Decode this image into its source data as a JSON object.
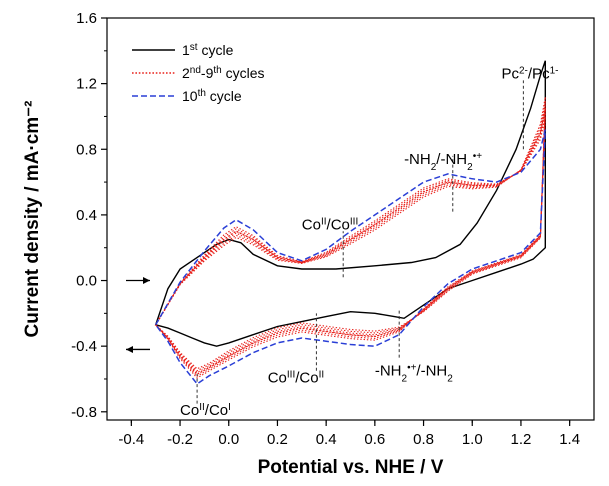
{
  "chart_data": {
    "type": "line",
    "xlabel": "Potential vs. NHE / V",
    "ylabel": "Current density / mA·cm⁻²",
    "xlim": [
      -0.5,
      1.5
    ],
    "ylim": [
      -0.85,
      1.6
    ],
    "xticks": [
      -0.4,
      -0.2,
      0.0,
      0.2,
      0.4,
      0.6,
      0.8,
      1.0,
      1.2,
      1.4
    ],
    "xtick_labels": [
      "-0.4",
      "-0.2",
      "0.0",
      "0.2",
      "0.4",
      "0.6",
      "0.8",
      "1.0",
      "1.2",
      "1.4"
    ],
    "yticks": [
      -0.8,
      -0.4,
      0.0,
      0.4,
      0.8,
      1.2,
      1.6
    ],
    "ytick_labels": [
      "-0.8",
      "-0.4",
      "0.0",
      "0.4",
      "0.8",
      "1.2",
      "1.6"
    ],
    "legend": {
      "position": "top-left",
      "entries": [
        {
          "base": "1",
          "sup": "st",
          "rest": " cycle",
          "color": "#000000",
          "dash": "solid"
        },
        {
          "base": "2",
          "sup": "nd",
          "rest": "-9",
          "sup2": "th",
          "rest2": " cycles",
          "color": "#e8201a",
          "dash": "dotted"
        },
        {
          "base": "10",
          "sup": "th",
          "rest": " cycle",
          "color": "#2a3fd6",
          "dash": "dashed"
        }
      ]
    },
    "series": [
      {
        "name": "1st cycle",
        "color": "#000000",
        "dash": "solid",
        "x": [
          0.44,
          0.6,
          0.75,
          0.85,
          0.95,
          1.02,
          1.1,
          1.18,
          1.24,
          1.28,
          1.3,
          1.3,
          1.25,
          1.2,
          1.1,
          1.0,
          0.9,
          0.8,
          0.72,
          0.68,
          0.6,
          0.5,
          0.4,
          0.3,
          0.2,
          0.1,
          0.0,
          -0.05,
          -0.1,
          -0.15,
          -0.2,
          -0.25,
          -0.3,
          -0.25,
          -0.2,
          -0.15,
          -0.1,
          -0.05,
          0.0,
          0.05,
          0.1,
          0.2,
          0.3,
          0.4,
          0.44
        ],
        "y": [
          0.07,
          0.09,
          0.11,
          0.14,
          0.22,
          0.35,
          0.55,
          0.8,
          1.05,
          1.25,
          1.34,
          0.2,
          0.13,
          0.1,
          0.05,
          0.0,
          -0.05,
          -0.15,
          -0.23,
          -0.22,
          -0.2,
          -0.19,
          -0.22,
          -0.25,
          -0.28,
          -0.33,
          -0.38,
          -0.4,
          -0.38,
          -0.35,
          -0.32,
          -0.29,
          -0.27,
          -0.05,
          0.07,
          0.12,
          0.17,
          0.22,
          0.25,
          0.23,
          0.16,
          0.09,
          0.07,
          0.07,
          0.07
        ]
      },
      {
        "name": "2nd-9th cycles",
        "color": "#e8201a",
        "dash": "dotted",
        "x": [
          -0.3,
          -0.2,
          -0.1,
          -0.02,
          0.03,
          0.1,
          0.2,
          0.3,
          0.4,
          0.5,
          0.6,
          0.7,
          0.8,
          0.9,
          1.0,
          1.1,
          1.2,
          1.28,
          1.3,
          1.28,
          1.2,
          1.1,
          1.0,
          0.9,
          0.8,
          0.7,
          0.6,
          0.5,
          0.4,
          0.3,
          0.2,
          0.1,
          0.0,
          -0.08,
          -0.13,
          -0.2,
          -0.25,
          -0.3
        ],
        "y": [
          -0.27,
          -0.02,
          0.14,
          0.25,
          0.3,
          0.25,
          0.14,
          0.11,
          0.16,
          0.25,
          0.34,
          0.44,
          0.54,
          0.6,
          0.58,
          0.58,
          0.67,
          0.9,
          1.05,
          0.27,
          0.15,
          0.1,
          0.05,
          -0.05,
          -0.18,
          -0.3,
          -0.34,
          -0.33,
          -0.31,
          -0.29,
          -0.32,
          -0.38,
          -0.46,
          -0.53,
          -0.57,
          -0.46,
          -0.35,
          -0.27
        ]
      },
      {
        "name": "10th cycle",
        "color": "#2a3fd6",
        "dash": "dashed",
        "x": [
          -0.3,
          -0.2,
          -0.1,
          -0.02,
          0.03,
          0.1,
          0.2,
          0.3,
          0.4,
          0.5,
          0.6,
          0.7,
          0.8,
          0.9,
          1.0,
          1.1,
          1.2,
          1.28,
          1.3,
          1.28,
          1.2,
          1.1,
          1.0,
          0.9,
          0.8,
          0.7,
          0.6,
          0.5,
          0.4,
          0.3,
          0.2,
          0.1,
          0.0,
          -0.08,
          -0.13,
          -0.2,
          -0.25,
          -0.3
        ],
        "y": [
          -0.27,
          -0.01,
          0.18,
          0.32,
          0.37,
          0.31,
          0.17,
          0.12,
          0.19,
          0.3,
          0.4,
          0.5,
          0.6,
          0.65,
          0.62,
          0.6,
          0.66,
          0.8,
          0.92,
          0.29,
          0.17,
          0.12,
          0.07,
          -0.02,
          -0.16,
          -0.33,
          -0.4,
          -0.39,
          -0.37,
          -0.35,
          -0.38,
          -0.44,
          -0.52,
          -0.58,
          -0.63,
          -0.5,
          -0.37,
          -0.27
        ]
      }
    ],
    "annotations": [
      {
        "parts": [
          [
            "Pc",
            ""
          ],
          [
            "2-",
            "sup"
          ],
          [
            "/Pc",
            ""
          ],
          [
            "1-",
            "sup"
          ]
        ],
        "x": 1.12,
        "y": 1.23,
        "marker_x": 1.21,
        "marker_y": [
          0.8,
          1.22
        ]
      },
      {
        "parts": [
          [
            "-NH",
            ""
          ],
          [
            "2",
            "sub"
          ],
          [
            "/-NH",
            ""
          ],
          [
            "2",
            "sub"
          ],
          [
            "•+",
            "sup"
          ]
        ],
        "x": 0.72,
        "y": 0.71,
        "marker_x": 0.92,
        "marker_y": [
          0.42,
          0.76
        ]
      },
      {
        "parts": [
          [
            "Co",
            ""
          ],
          [
            "II",
            "sup"
          ],
          [
            "/Co",
            ""
          ],
          [
            "III",
            "sup"
          ]
        ],
        "x": 0.3,
        "y": 0.31,
        "marker_x": 0.47,
        "marker_y": [
          0.02,
          0.3
        ]
      },
      {
        "parts": [
          [
            "Co",
            ""
          ],
          [
            "III",
            "sup"
          ],
          [
            "/Co",
            ""
          ],
          [
            "II",
            "sup"
          ]
        ],
        "x": 0.16,
        "y": -0.62,
        "marker_x": 0.36,
        "marker_y": [
          -0.55,
          -0.2
        ]
      },
      {
        "parts": [
          [
            "-NH",
            ""
          ],
          [
            "2",
            "sub"
          ],
          [
            "•+",
            "sup"
          ],
          [
            "/-NH",
            ""
          ],
          [
            "2",
            "sub"
          ]
        ],
        "x": 0.6,
        "y": -0.58,
        "marker_x": 0.7,
        "marker_y": [
          -0.47,
          -0.18
        ]
      },
      {
        "parts": [
          [
            "Co",
            ""
          ],
          [
            "II",
            "sup"
          ],
          [
            "/Co",
            ""
          ],
          [
            "I",
            "sup"
          ]
        ],
        "x": -0.2,
        "y": -0.82,
        "marker_x": -0.13,
        "marker_y": [
          -0.75,
          -0.57
        ]
      }
    ],
    "scan_arrows": [
      {
        "direction": "right",
        "y": 0.0
      },
      {
        "direction": "left",
        "y": -0.42
      }
    ]
  }
}
